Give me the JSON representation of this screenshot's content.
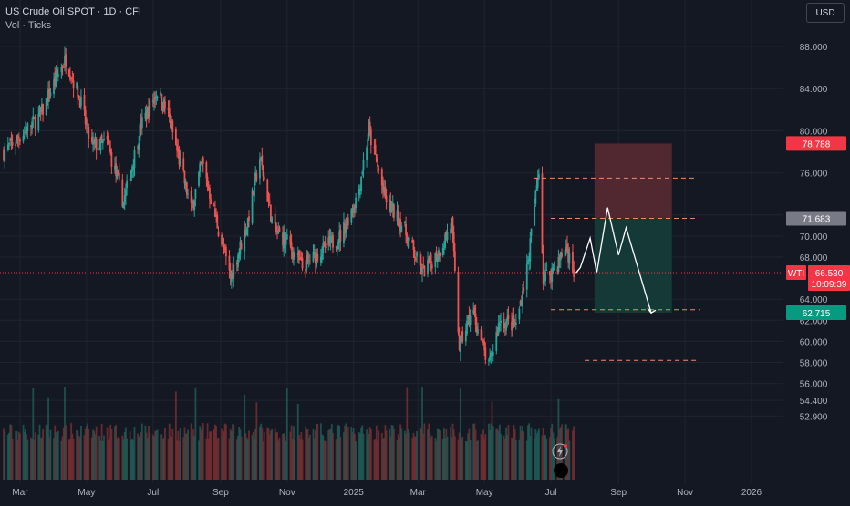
{
  "legend": {
    "symbol_line": "US Crude Oil SPOT · 1D · CFI",
    "indicator_line": "Vol · Ticks"
  },
  "currency_button": "USD",
  "colors": {
    "background": "#141823",
    "up": "#26a69a",
    "down": "#ef5350",
    "risk_zone": "#5c2a33",
    "reward_zone": "#143d3a",
    "projection": "#ffffff",
    "level_dashes": "#f08a6c",
    "axis_text": "#b2b5be"
  },
  "price_axis": {
    "ticks": [
      "88.000",
      "84.000",
      "80.000",
      "76.000",
      "72.000",
      "70.000",
      "68.000",
      "64.000",
      "62.000",
      "60.000",
      "58.000",
      "56.000",
      "54.400",
      "52.900"
    ],
    "tick_values": [
      88,
      84,
      80,
      76,
      72,
      70,
      68,
      64,
      62,
      60,
      58,
      56,
      54.4,
      52.9
    ]
  },
  "time_axis": {
    "labels": [
      "Mar",
      "May",
      "Jul",
      "Sep",
      "Nov",
      "2025",
      "Mar",
      "May",
      "Jul",
      "Sep",
      "Nov",
      "2026"
    ],
    "dates": [
      "2024-03",
      "2024-05",
      "2024-07",
      "2024-09",
      "2024-11",
      "2025-01",
      "2025-03",
      "2025-05",
      "2025-07",
      "2025-09",
      "2025-11",
      "2026-01"
    ]
  },
  "price_tags": {
    "stop": {
      "value": "78.788",
      "color": "#f23645"
    },
    "entry": {
      "value": "71.683",
      "color": "#787b86"
    },
    "last": {
      "symbol": "WTI",
      "value": "66.530",
      "countdown": "10:09:39",
      "color": "#f23645"
    },
    "target": {
      "value": "62.715",
      "color": "#089981"
    }
  },
  "chart_data": {
    "type": "candlestick",
    "title": "US Crude Oil SPOT · 1D · CFI",
    "ylim": [
      52.9,
      90.0
    ],
    "xlim": [
      "2024-02-15",
      "2026-02-01"
    ],
    "close_path": [
      [
        "2024-02-15",
        78.0
      ],
      [
        "2024-03-01",
        79.5
      ],
      [
        "2024-03-20",
        81.5
      ],
      [
        "2024-04-05",
        85.5
      ],
      [
        "2024-04-12",
        86.8
      ],
      [
        "2024-04-25",
        83.0
      ],
      [
        "2024-05-05",
        78.5
      ],
      [
        "2024-05-20",
        78.8
      ],
      [
        "2024-06-04",
        73.2
      ],
      [
        "2024-06-20",
        80.5
      ],
      [
        "2024-07-05",
        83.8
      ],
      [
        "2024-07-15",
        81.5
      ],
      [
        "2024-08-05",
        72.5
      ],
      [
        "2024-08-15",
        77.0
      ],
      [
        "2024-09-10",
        66.0
      ],
      [
        "2024-09-25",
        71.0
      ],
      [
        "2024-10-07",
        77.5
      ],
      [
        "2024-10-20",
        70.5
      ],
      [
        "2024-11-01",
        69.5
      ],
      [
        "2024-11-15",
        67.0
      ],
      [
        "2024-12-01",
        68.5
      ],
      [
        "2024-12-20",
        70.0
      ],
      [
        "2025-01-05",
        74.0
      ],
      [
        "2025-01-15",
        80.0
      ],
      [
        "2025-01-30",
        73.5
      ],
      [
        "2025-02-15",
        71.0
      ],
      [
        "2025-03-05",
        66.5
      ],
      [
        "2025-03-20",
        68.5
      ],
      [
        "2025-04-01",
        71.2
      ],
      [
        "2025-04-08",
        59.5
      ],
      [
        "2025-04-20",
        63.0
      ],
      [
        "2025-05-05",
        57.5
      ],
      [
        "2025-05-15",
        62.0
      ],
      [
        "2025-05-30",
        61.5
      ],
      [
        "2025-06-10",
        67.5
      ],
      [
        "2025-06-15",
        72.0
      ],
      [
        "2025-06-20",
        76.5
      ],
      [
        "2025-06-24",
        66.0
      ],
      [
        "2025-07-05",
        67.0
      ],
      [
        "2025-07-15",
        69.0
      ],
      [
        "2025-07-22",
        66.5
      ]
    ],
    "risk_reward": {
      "stop": 78.788,
      "entry": 71.683,
      "target": 62.715,
      "from": "2025-08-10",
      "to": "2025-10-20"
    },
    "projection": [
      [
        "2025-07-24",
        66.5
      ],
      [
        "2025-07-28",
        67.0
      ],
      [
        "2025-08-06",
        69.8
      ],
      [
        "2025-08-12",
        66.5
      ],
      [
        "2025-08-22",
        72.7
      ],
      [
        "2025-09-01",
        68.2
      ],
      [
        "2025-09-08",
        70.8
      ],
      [
        "2025-10-01",
        62.7
      ]
    ],
    "dashed_levels": [
      {
        "value": 75.5,
        "from": "2025-06-15",
        "to": "2025-11-10"
      },
      {
        "value": 71.683,
        "from": "2025-07-01",
        "to": "2025-11-10"
      },
      {
        "value": 63.0,
        "from": "2025-07-01",
        "to": "2025-11-15"
      },
      {
        "value": 58.2,
        "from": "2025-08-01",
        "to": "2025-11-15"
      }
    ],
    "last_price": 66.53,
    "grid": true
  }
}
